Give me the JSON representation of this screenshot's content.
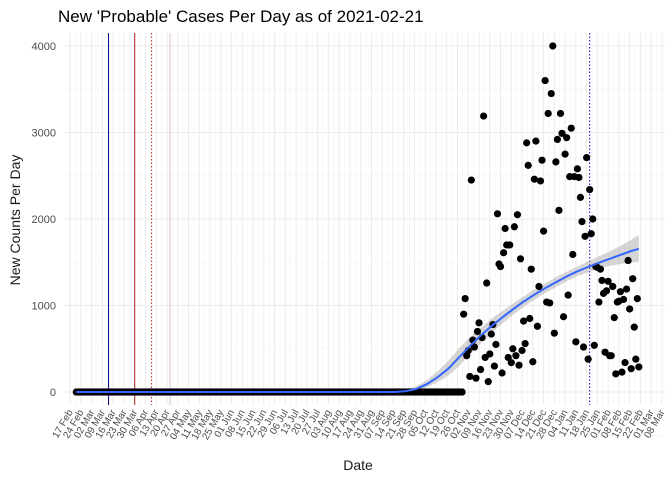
{
  "chart_data": {
    "type": "scatter",
    "title": "New 'Probable' Cases Per Day as of 2021-02-21",
    "xlabel": "Date",
    "ylabel": "New Counts Per Day",
    "x_type": "date",
    "xlim": [
      "2020-02-13",
      "2021-03-10"
    ],
    "ylim": [
      -150,
      4150
    ],
    "y_ticks": [
      0,
      1000,
      2000,
      3000,
      4000
    ],
    "x_tick_dates": [
      "2020-02-17",
      "2020-02-24",
      "2020-03-02",
      "2020-03-09",
      "2020-03-16",
      "2020-03-23",
      "2020-03-30",
      "2020-04-06",
      "2020-04-13",
      "2020-04-20",
      "2020-04-27",
      "2020-05-04",
      "2020-05-11",
      "2020-05-18",
      "2020-05-25",
      "2020-06-01",
      "2020-06-08",
      "2020-06-15",
      "2020-06-22",
      "2020-06-29",
      "2020-07-06",
      "2020-07-13",
      "2020-07-20",
      "2020-07-27",
      "2020-08-03",
      "2020-08-10",
      "2020-08-17",
      "2020-08-24",
      "2020-08-31",
      "2020-09-07",
      "2020-09-14",
      "2020-09-21",
      "2020-09-28",
      "2020-10-05",
      "2020-10-12",
      "2020-10-19",
      "2020-10-26",
      "2020-11-02",
      "2020-11-09",
      "2020-11-16",
      "2020-11-23",
      "2020-11-30",
      "2020-12-07",
      "2020-12-14",
      "2020-12-21",
      "2020-12-28",
      "2021-01-04",
      "2021-01-11",
      "2021-01-18",
      "2021-01-25",
      "2021-02-01",
      "2021-02-08",
      "2021-02-15",
      "2021-02-22",
      "2021-03-01",
      "2021-03-08"
    ],
    "x_tick_labels": [
      "17 Feb",
      "24 Feb",
      "02 Mar",
      "09 Mar",
      "16 Mar",
      "23 Mar",
      "30 Mar",
      "06 Apr",
      "13 Apr",
      "20 Apr",
      "27 Apr",
      "04 May",
      "11 May",
      "18 May",
      "25 May",
      "01 Jun",
      "08 Jun",
      "15 Jun",
      "22 Jun",
      "29 Jun",
      "06 Jul",
      "13 Jul",
      "20 Jul",
      "27 Jul",
      "03 Aug",
      "10 Aug",
      "17 Aug",
      "24 Aug",
      "31 Aug",
      "07 Sep",
      "14 Sep",
      "21 Sep",
      "28 Sep",
      "05 Oct",
      "12 Oct",
      "19 Oct",
      "26 Oct",
      "02 Nov",
      "09 Nov",
      "16 Nov",
      "23 Nov",
      "30 Nov",
      "07 Dec",
      "14 Dec",
      "21 Dec",
      "28 Dec",
      "04 Jan",
      "11 Jan",
      "18 Jan",
      "25 Jan",
      "01 Feb",
      "08 Feb",
      "15 Feb",
      "22 Feb",
      "01 Mar",
      "08 Mar"
    ],
    "grid": true,
    "vlines": [
      {
        "date": "2020-03-13",
        "color": "#00008b",
        "style": "solid"
      },
      {
        "date": "2020-03-30",
        "color": "#b22222",
        "style": "solid"
      },
      {
        "date": "2020-04-10",
        "color": "#b22222",
        "style": "dotted"
      },
      {
        "date": "2020-04-22",
        "color": "#d8bfd8",
        "style": "solid"
      },
      {
        "date": "2021-01-20",
        "color": "#0000cd",
        "style": "dotted"
      }
    ],
    "series": [
      {
        "color": "#000000",
        "zero_run": {
          "start": "2020-02-21",
          "end": "2020-10-29",
          "value": 0
        },
        "x": [
          "2020-10-30",
          "2020-10-31",
          "2020-11-01",
          "2020-11-02",
          "2020-11-03",
          "2020-11-04",
          "2020-11-05",
          "2020-11-06",
          "2020-11-07",
          "2020-11-08",
          "2020-11-09",
          "2020-11-10",
          "2020-11-11",
          "2020-11-12",
          "2020-11-13",
          "2020-11-14",
          "2020-11-15",
          "2020-11-16",
          "2020-11-17",
          "2020-11-18",
          "2020-11-19",
          "2020-11-20",
          "2020-11-21",
          "2020-11-22",
          "2020-11-23",
          "2020-11-24",
          "2020-11-25",
          "2020-11-26",
          "2020-11-27",
          "2020-11-28",
          "2020-11-29",
          "2020-11-30",
          "2020-12-01",
          "2020-12-02",
          "2020-12-03",
          "2020-12-04",
          "2020-12-05",
          "2020-12-06",
          "2020-12-07",
          "2020-12-08",
          "2020-12-09",
          "2020-12-10",
          "2020-12-11",
          "2020-12-12",
          "2020-12-13",
          "2020-12-14",
          "2020-12-15",
          "2020-12-16",
          "2020-12-17",
          "2020-12-18",
          "2020-12-19",
          "2020-12-20",
          "2020-12-21",
          "2020-12-22",
          "2020-12-23",
          "2020-12-24",
          "2020-12-25",
          "2020-12-26",
          "2020-12-27",
          "2020-12-28",
          "2020-12-29",
          "2020-12-30",
          "2020-12-31",
          "2021-01-01",
          "2021-01-02",
          "2021-01-03",
          "2021-01-04",
          "2021-01-05",
          "2021-01-06",
          "2021-01-07",
          "2021-01-08",
          "2021-01-09",
          "2021-01-10",
          "2021-01-11",
          "2021-01-12",
          "2021-01-13",
          "2021-01-14",
          "2021-01-15",
          "2021-01-16",
          "2021-01-17",
          "2021-01-18",
          "2021-01-19",
          "2021-01-20",
          "2021-01-21",
          "2021-01-22",
          "2021-01-23",
          "2021-01-24",
          "2021-01-25",
          "2021-01-26",
          "2021-01-27",
          "2021-01-28",
          "2021-01-29",
          "2021-01-30",
          "2021-01-31",
          "2021-02-01",
          "2021-02-02",
          "2021-02-03",
          "2021-02-04",
          "2021-02-05",
          "2021-02-06",
          "2021-02-07",
          "2021-02-08",
          "2021-02-09",
          "2021-02-10",
          "2021-02-11",
          "2021-02-12",
          "2021-02-13",
          "2021-02-14",
          "2021-02-15",
          "2021-02-16",
          "2021-02-17",
          "2021-02-18",
          "2021-02-19",
          "2021-02-20",
          "2021-02-21"
        ],
        "y": [
          900,
          1080,
          420,
          480,
          180,
          2450,
          600,
          520,
          160,
          700,
          800,
          260,
          630,
          3190,
          400,
          1260,
          120,
          440,
          670,
          780,
          300,
          550,
          2060,
          1480,
          1450,
          220,
          1610,
          1890,
          1700,
          400,
          1700,
          340,
          500,
          1910,
          420,
          2050,
          310,
          1540,
          480,
          820,
          560,
          2880,
          2620,
          850,
          1420,
          350,
          2460,
          2900,
          760,
          1220,
          2440,
          2680,
          1860,
          3600,
          1040,
          3220,
          1030,
          3450,
          4000,
          680,
          2660,
          2920,
          2100,
          3220,
          2990,
          870,
          2750,
          2940,
          1120,
          2490,
          3050,
          1590,
          2490,
          580,
          2580,
          2480,
          2250,
          1970,
          520,
          1800,
          2710,
          380,
          2340,
          1830,
          2000,
          540,
          1450,
          1440,
          1040,
          1420,
          1290,
          1140,
          460,
          1170,
          1280,
          420,
          420,
          1220,
          860,
          210,
          1040,
          1050,
          1160,
          230,
          1070,
          340,
          1190,
          1520,
          960,
          270,
          1310,
          750,
          380,
          1080,
          290
        ]
      },
      {
        "type": "smooth",
        "color": "#3366ff",
        "x": [
          "2020-02-21",
          "2020-03-15",
          "2020-04-15",
          "2020-05-15",
          "2020-06-15",
          "2020-07-15",
          "2020-08-15",
          "2020-09-15",
          "2020-09-22",
          "2020-09-29",
          "2020-10-06",
          "2020-10-13",
          "2020-10-20",
          "2020-10-27",
          "2020-11-03",
          "2020-11-10",
          "2020-11-17",
          "2020-11-24",
          "2020-12-01",
          "2020-12-08",
          "2020-12-15",
          "2020-12-22",
          "2020-12-29",
          "2021-01-05",
          "2021-01-12",
          "2021-01-19",
          "2021-01-26",
          "2021-02-02",
          "2021-02-09",
          "2021-02-16",
          "2021-02-21"
        ],
        "y": [
          0,
          0,
          0,
          0,
          0,
          0,
          0,
          0,
          10,
          35,
          90,
          170,
          270,
          400,
          530,
          650,
          760,
          860,
          955,
          1045,
          1125,
          1200,
          1270,
          1335,
          1395,
          1445,
          1495,
          1540,
          1585,
          1630,
          1655
        ],
        "ci_low": [
          -15,
          -15,
          -15,
          -15,
          -15,
          -15,
          -15,
          -15,
          -5,
          10,
          55,
          115,
          190,
          300,
          430,
          560,
          680,
          790,
          890,
          985,
          1065,
          1145,
          1210,
          1280,
          1340,
          1385,
          1425,
          1460,
          1480,
          1500,
          1505
        ],
        "ci_high": [
          15,
          15,
          15,
          15,
          15,
          15,
          15,
          15,
          25,
          65,
          135,
          240,
          360,
          505,
          630,
          740,
          845,
          935,
          1020,
          1105,
          1185,
          1255,
          1330,
          1390,
          1450,
          1510,
          1570,
          1625,
          1690,
          1760,
          1815
        ]
      }
    ]
  }
}
